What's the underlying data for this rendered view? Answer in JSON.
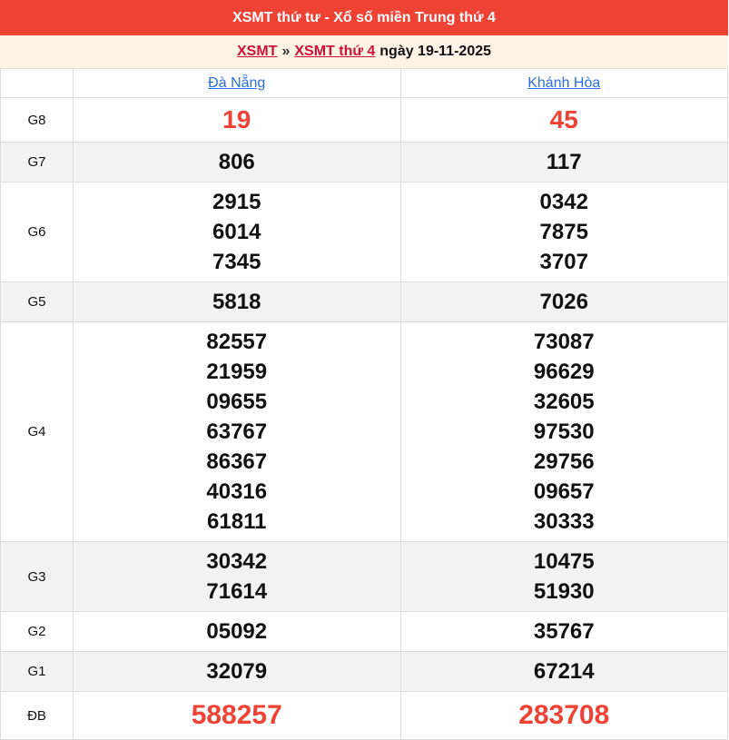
{
  "header": {
    "title": "XSMT thứ tư - Xổ số miền Trung thứ 4"
  },
  "breadcrumb": {
    "link1": "XSMT",
    "separator": "»",
    "link2": "XSMT thứ 4",
    "date_text": "ngày 19-11-2025"
  },
  "provinces": [
    "Đà Nẵng",
    "Khánh Hòa"
  ],
  "colors": {
    "header_bg": "#ee4235",
    "subheader_bg": "#fff3e6",
    "highlight": "#ee4235",
    "link": "#2a6fdb"
  },
  "prizes": [
    {
      "label": "G8",
      "values": [
        [
          "19"
        ],
        [
          "45"
        ]
      ]
    },
    {
      "label": "G7",
      "values": [
        [
          "806"
        ],
        [
          "117"
        ]
      ]
    },
    {
      "label": "G6",
      "values": [
        [
          "2915",
          "6014",
          "7345"
        ],
        [
          "0342",
          "7875",
          "3707"
        ]
      ]
    },
    {
      "label": "G5",
      "values": [
        [
          "5818"
        ],
        [
          "7026"
        ]
      ]
    },
    {
      "label": "G4",
      "values": [
        [
          "82557",
          "21959",
          "09655",
          "63767",
          "86367",
          "40316",
          "61811"
        ],
        [
          "73087",
          "96629",
          "32605",
          "97530",
          "29756",
          "09657",
          "30333"
        ]
      ]
    },
    {
      "label": "G3",
      "values": [
        [
          "30342",
          "71614"
        ],
        [
          "10475",
          "51930"
        ]
      ]
    },
    {
      "label": "G2",
      "values": [
        [
          "05092"
        ],
        [
          "35767"
        ]
      ]
    },
    {
      "label": "G1",
      "values": [
        [
          "32079"
        ],
        [
          "67214"
        ]
      ]
    },
    {
      "label": "ĐB",
      "values": [
        [
          "588257"
        ],
        [
          "283708"
        ]
      ]
    }
  ]
}
